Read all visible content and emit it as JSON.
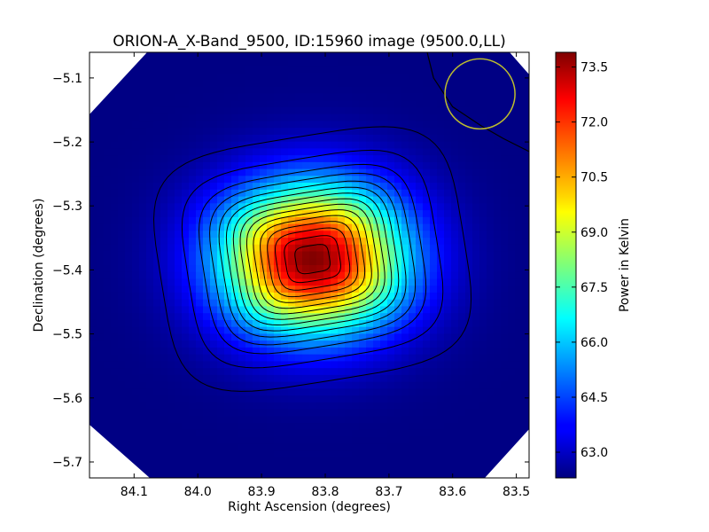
{
  "chart_data": {
    "type": "heatmap",
    "title": "ORION-A_X-Band_9500, ID:15960 image (9500.0,LL)",
    "xlabel": "Right Ascension (degrees)",
    "ylabel": "Declination (degrees)",
    "colorbar_label": "Power in Kelvin",
    "colormap": "jet",
    "x_inverted": true,
    "xlim": [
      84.17,
      83.48
    ],
    "ylim": [
      -5.725,
      -5.06
    ],
    "xticks": [
      84.1,
      84.0,
      83.9,
      83.8,
      83.7,
      83.6,
      83.5
    ],
    "xtick_labels": [
      "84.1",
      "84.0",
      "83.9",
      "83.8",
      "83.7",
      "83.6",
      "83.5"
    ],
    "yticks": [
      -5.1,
      -5.2,
      -5.3,
      -5.4,
      -5.5,
      -5.6,
      -5.7
    ],
    "ytick_labels": [
      "−5.1",
      "−5.2",
      "−5.3",
      "−5.4",
      "−5.5",
      "−5.6",
      "−5.7"
    ],
    "color_range": [
      62.3,
      73.9
    ],
    "colorbar_ticks": [
      63.0,
      64.5,
      66.0,
      67.5,
      69.0,
      70.5,
      72.0,
      73.5
    ],
    "colorbar_tick_labels": [
      "63.0",
      "64.5",
      "66.0",
      "67.5",
      "69.0",
      "70.5",
      "72.0",
      "73.5"
    ],
    "peak": {
      "ra": 83.82,
      "dec": -5.383,
      "value": 73.9
    },
    "background_value": 62.35,
    "source_sigma_deg": {
      "ra": 0.1,
      "dec": 0.08
    },
    "beam_circle": {
      "ra": 83.557,
      "dec": -5.125,
      "radius_deg": 0.055,
      "color": "#bdbd2e"
    },
    "contour_levels": [
      63.0,
      64.0,
      65.0,
      65.8,
      66.6,
      67.3,
      68.0,
      68.7,
      69.4,
      70.1,
      70.8,
      71.5,
      72.2,
      72.9,
      73.5
    ],
    "low_contour": {
      "level": 62.4,
      "points": [
        [
          83.64,
          -5.06
        ],
        [
          83.63,
          -5.1
        ],
        [
          83.6,
          -5.145
        ],
        [
          83.555,
          -5.175
        ],
        [
          83.52,
          -5.195
        ],
        [
          83.48,
          -5.215
        ]
      ]
    }
  }
}
